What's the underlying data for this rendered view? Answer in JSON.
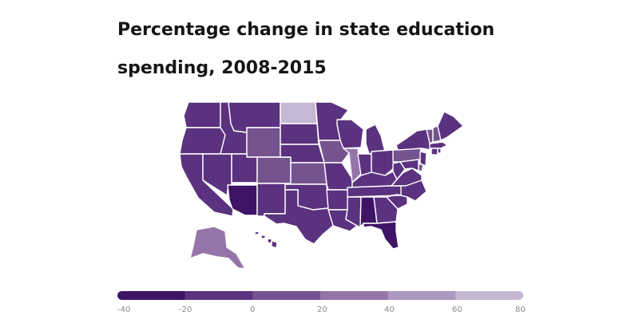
{
  "title_lines": [
    "Percentage change in state education",
    "spending, 2008-2015"
  ],
  "legend": {
    "ticks": [
      "-40",
      "-20",
      "0",
      "20",
      "40",
      "60",
      "80"
    ],
    "bins": [
      {
        "from": -40,
        "to": -20,
        "color": "#3e1466"
      },
      {
        "from": -20,
        "to": 0,
        "color": "#5b327f"
      },
      {
        "from": 0,
        "to": 20,
        "color": "#75538f"
      },
      {
        "from": 20,
        "to": 40,
        "color": "#9475aa"
      },
      {
        "from": 40,
        "to": 60,
        "color": "#ad98c0"
      },
      {
        "from": 60,
        "to": 80,
        "color": "#c6b7d4"
      }
    ]
  },
  "colors": {
    "v1": "#3e1466",
    "v2": "#5b327f",
    "v3": "#75538f",
    "v4": "#9475aa",
    "v5": "#c6b7d4"
  },
  "states": [
    {
      "abbr": "WA",
      "class": "v2"
    },
    {
      "abbr": "OR",
      "class": "v2"
    },
    {
      "abbr": "CA",
      "class": "v2"
    },
    {
      "abbr": "ID",
      "class": "v2"
    },
    {
      "abbr": "NV",
      "class": "v2"
    },
    {
      "abbr": "MT",
      "class": "v2"
    },
    {
      "abbr": "WY",
      "class": "v3"
    },
    {
      "abbr": "UT",
      "class": "v2"
    },
    {
      "abbr": "AZ",
      "class": "v1"
    },
    {
      "abbr": "CO",
      "class": "v3"
    },
    {
      "abbr": "NM",
      "class": "v2"
    },
    {
      "abbr": "ND",
      "class": "v5"
    },
    {
      "abbr": "SD",
      "class": "v2"
    },
    {
      "abbr": "NE",
      "class": "v2"
    },
    {
      "abbr": "KS",
      "class": "v3"
    },
    {
      "abbr": "OK",
      "class": "v2"
    },
    {
      "abbr": "TX",
      "class": "v2"
    },
    {
      "abbr": "MN",
      "class": "v2"
    },
    {
      "abbr": "IA",
      "class": "v3"
    },
    {
      "abbr": "MO",
      "class": "v2"
    },
    {
      "abbr": "AR",
      "class": "v2"
    },
    {
      "abbr": "LA",
      "class": "v2"
    },
    {
      "abbr": "WI",
      "class": "v2"
    },
    {
      "abbr": "IL",
      "class": "v4"
    },
    {
      "abbr": "MI",
      "class": "v2"
    },
    {
      "abbr": "IN",
      "class": "v2"
    },
    {
      "abbr": "OH",
      "class": "v2"
    },
    {
      "abbr": "KY",
      "class": "v2"
    },
    {
      "abbr": "TN",
      "class": "v2"
    },
    {
      "abbr": "MS",
      "class": "v2"
    },
    {
      "abbr": "AL",
      "class": "v1"
    },
    {
      "abbr": "GA",
      "class": "v2"
    },
    {
      "abbr": "FL",
      "class": "v1"
    },
    {
      "abbr": "SC",
      "class": "v2"
    },
    {
      "abbr": "NC",
      "class": "v2"
    },
    {
      "abbr": "VA",
      "class": "v2"
    },
    {
      "abbr": "WV",
      "class": "v2"
    },
    {
      "abbr": "PA",
      "class": "v3"
    },
    {
      "abbr": "NY",
      "class": "v2"
    },
    {
      "abbr": "VT",
      "class": "v3"
    },
    {
      "abbr": "NH",
      "class": "v3"
    },
    {
      "abbr": "ME",
      "class": "v2"
    },
    {
      "abbr": "MA",
      "class": "v2"
    },
    {
      "abbr": "CT",
      "class": "v2"
    },
    {
      "abbr": "RI",
      "class": "v2"
    },
    {
      "abbr": "NJ",
      "class": "v2"
    },
    {
      "abbr": "DE",
      "class": "v3"
    },
    {
      "abbr": "MD",
      "class": "v2"
    },
    {
      "abbr": "AK",
      "class": "v4"
    },
    {
      "abbr": "HI",
      "class": "v2"
    }
  ]
}
